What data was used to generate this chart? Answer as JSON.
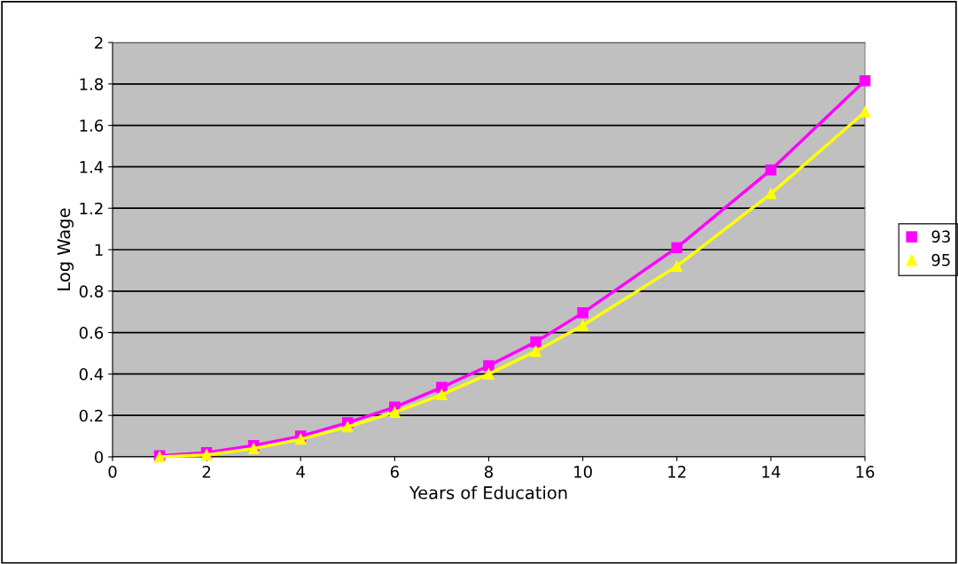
{
  "chart_data": {
    "type": "line",
    "xlabel": "Years of Education",
    "ylabel": "Log Wage",
    "x": [
      1,
      2,
      3,
      4,
      5,
      6,
      7,
      8,
      9,
      10,
      12,
      14,
      16
    ],
    "series": [
      {
        "name": "93",
        "color": "#ff00ff",
        "marker": "square",
        "values": [
          0.005,
          0.02,
          0.055,
          0.1,
          0.165,
          0.24,
          0.335,
          0.44,
          0.555,
          0.695,
          1.01,
          1.385,
          1.815
        ]
      },
      {
        "name": "95",
        "color": "#ffff00",
        "marker": "triangle",
        "values": [
          0.0,
          0.01,
          0.04,
          0.085,
          0.145,
          0.215,
          0.3,
          0.4,
          0.51,
          0.635,
          0.92,
          1.27,
          1.665
        ]
      }
    ],
    "xlim": [
      0,
      16
    ],
    "xticks": [
      0,
      2,
      4,
      6,
      8,
      10,
      12,
      14,
      16
    ],
    "ylim": [
      0,
      2
    ],
    "yticks": [
      0,
      0.2,
      0.4,
      0.6,
      0.8,
      1,
      1.2,
      1.4,
      1.6,
      1.8,
      2
    ],
    "grid": "y",
    "legend": "right",
    "line_style": "solid"
  }
}
